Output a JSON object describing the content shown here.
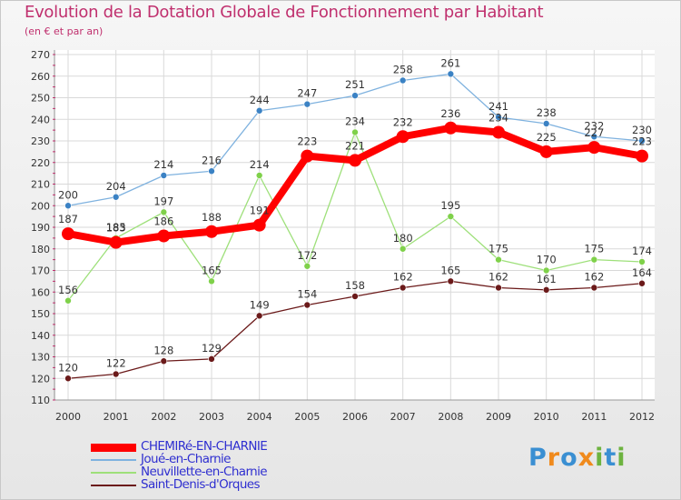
{
  "title": "Evolution de la Dotation Globale de Fonctionnement par Habitant",
  "subtitle": "(en € et par an)",
  "logo": {
    "text": "Proxiti",
    "letters": [
      "P",
      "r",
      "o",
      "x",
      "i",
      "t",
      "i"
    ],
    "colors": [
      "#3a8fd2",
      "#f08a1c",
      "#3a8fd2",
      "#f08a1c",
      "#6db33f",
      "#3a8fd2",
      "#6db33f"
    ]
  },
  "chart_data": {
    "type": "line",
    "title": "Evolution de la Dotation Globale de Fonctionnement par Habitant",
    "subtitle": "(en € et par an)",
    "xlabel": "",
    "ylabel": "",
    "x": [
      "2000",
      "2001",
      "2002",
      "2003",
      "2004",
      "2005",
      "2006",
      "2007",
      "2008",
      "2009",
      "2010",
      "2011",
      "2012"
    ],
    "ylim": [
      110,
      270
    ],
    "yticks": [
      110,
      120,
      130,
      140,
      150,
      160,
      170,
      180,
      190,
      200,
      210,
      220,
      230,
      240,
      250,
      260,
      270
    ],
    "grid": true,
    "legend": "bottom-left",
    "series": [
      {
        "name": "Saint-Denis-d'Orques",
        "color": "#6b1a1a",
        "marker": "#6b1a1a",
        "weight": "thin",
        "values": [
          120,
          122,
          128,
          129,
          149,
          154,
          158,
          162,
          165,
          162,
          161,
          162,
          164
        ],
        "labels": [
          "120",
          "122",
          "128",
          "129",
          "149",
          "154",
          "158",
          "162",
          "165",
          "162",
          "161",
          "162",
          "164"
        ]
      },
      {
        "name": "Neuvillette-en-Charnie",
        "color": "#9ee07a",
        "marker": "#7fd14a",
        "weight": "thin",
        "values": [
          156,
          185,
          197,
          165,
          214,
          172,
          234,
          180,
          195,
          175,
          170,
          175,
          174
        ],
        "labels": [
          "156",
          "185",
          "197",
          "165",
          "214",
          "172",
          "234",
          "180",
          "195",
          "175",
          "170",
          "175",
          "174"
        ]
      },
      {
        "name": "Joué-en-Charnie",
        "color": "#7fb2df",
        "marker": "#3b82c4",
        "weight": "thin",
        "values": [
          200,
          204,
          214,
          216,
          244,
          247,
          251,
          258,
          261,
          241,
          238,
          232,
          230
        ],
        "labels": [
          "200",
          "204",
          "214",
          "216",
          "244",
          "247",
          "251",
          "258",
          "261",
          "241",
          "238",
          "232",
          "230"
        ]
      },
      {
        "name": "CHEMIRé-EN-CHARNIE",
        "color": "#ff0000",
        "marker": "#ff0000",
        "weight": "thick",
        "values": [
          187,
          183,
          186,
          188,
          191,
          223,
          221,
          232,
          236,
          234,
          225,
          227,
          223
        ],
        "labels": [
          "187",
          "183",
          "186",
          "188",
          "191",
          "223",
          "221",
          "232",
          "236",
          "234",
          "225",
          "227",
          "223"
        ]
      }
    ]
  }
}
